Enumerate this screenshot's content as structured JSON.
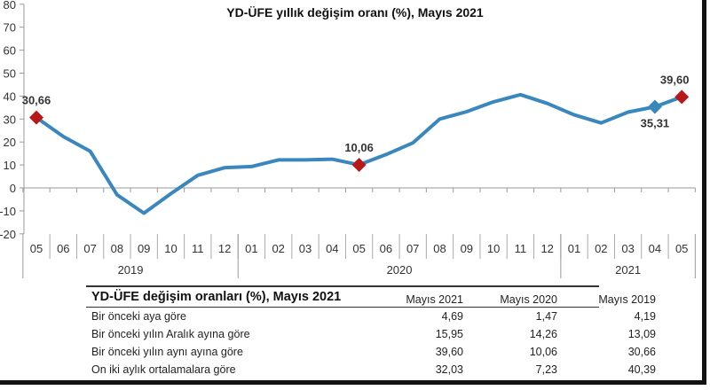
{
  "chart_data": {
    "type": "line",
    "title": "YD-ÜFE yıllık değişim oranı (%), Mayıs 2021",
    "xlabel": "",
    "ylabel": "",
    "ylim": [
      -20,
      80
    ],
    "yticks": [
      80,
      70,
      60,
      50,
      40,
      30,
      20,
      10,
      0,
      -10,
      -20
    ],
    "grid": false,
    "legend": null,
    "categories": [
      "05",
      "06",
      "07",
      "08",
      "09",
      "10",
      "11",
      "12",
      "01",
      "02",
      "03",
      "04",
      "05",
      "06",
      "07",
      "08",
      "09",
      "10",
      "11",
      "12",
      "01",
      "02",
      "03",
      "04",
      "05"
    ],
    "year_groups": [
      {
        "label": "2019",
        "start": 0,
        "end": 7
      },
      {
        "label": "2020",
        "start": 8,
        "end": 19
      },
      {
        "label": "2021",
        "start": 20,
        "end": 24
      }
    ],
    "series": [
      {
        "name": "YD-ÜFE yıllık değişim oranı",
        "color": "#3a87be",
        "values": [
          30.66,
          22.4,
          16.0,
          -3.0,
          -11.0,
          -2.5,
          5.5,
          8.8,
          9.3,
          12.2,
          12.2,
          12.5,
          10.06,
          14.5,
          19.6,
          30.0,
          33.2,
          37.5,
          40.6,
          36.8,
          31.8,
          28.3,
          33.0,
          35.31,
          39.6
        ]
      }
    ],
    "highlighted_points": [
      {
        "index": 0,
        "label": "30,66",
        "color": "#b81818"
      },
      {
        "index": 12,
        "label": "10,06",
        "color": "#b81818"
      },
      {
        "index": 23,
        "label": "35,31",
        "color": "#3a87be"
      },
      {
        "index": 24,
        "label": "39,60",
        "color": "#b81818"
      }
    ]
  },
  "table": {
    "title": "YD-ÜFE değişim oranları (%), Mayıs 2021",
    "columns": [
      "Mayıs 2021",
      "Mayıs 2020",
      "Mayıs 2019"
    ],
    "rows": [
      {
        "label": "Bir önceki aya göre",
        "values": [
          "4,69",
          "1,47",
          "4,19"
        ]
      },
      {
        "label": "Bir önceki yılın Aralık ayına göre",
        "values": [
          "15,95",
          "14,26",
          "13,09"
        ]
      },
      {
        "label": "Bir önceki yılın aynı ayına göre",
        "values": [
          "39,60",
          "10,06",
          "30,66"
        ]
      },
      {
        "label": "On iki aylık ortalamalara göre",
        "values": [
          "32,03",
          "7,23",
          "40,39"
        ]
      }
    ]
  },
  "colors": {
    "line": "#3a87be",
    "marker_red": "#b81818",
    "marker_blue": "#3a87be",
    "axis": "#999999"
  }
}
